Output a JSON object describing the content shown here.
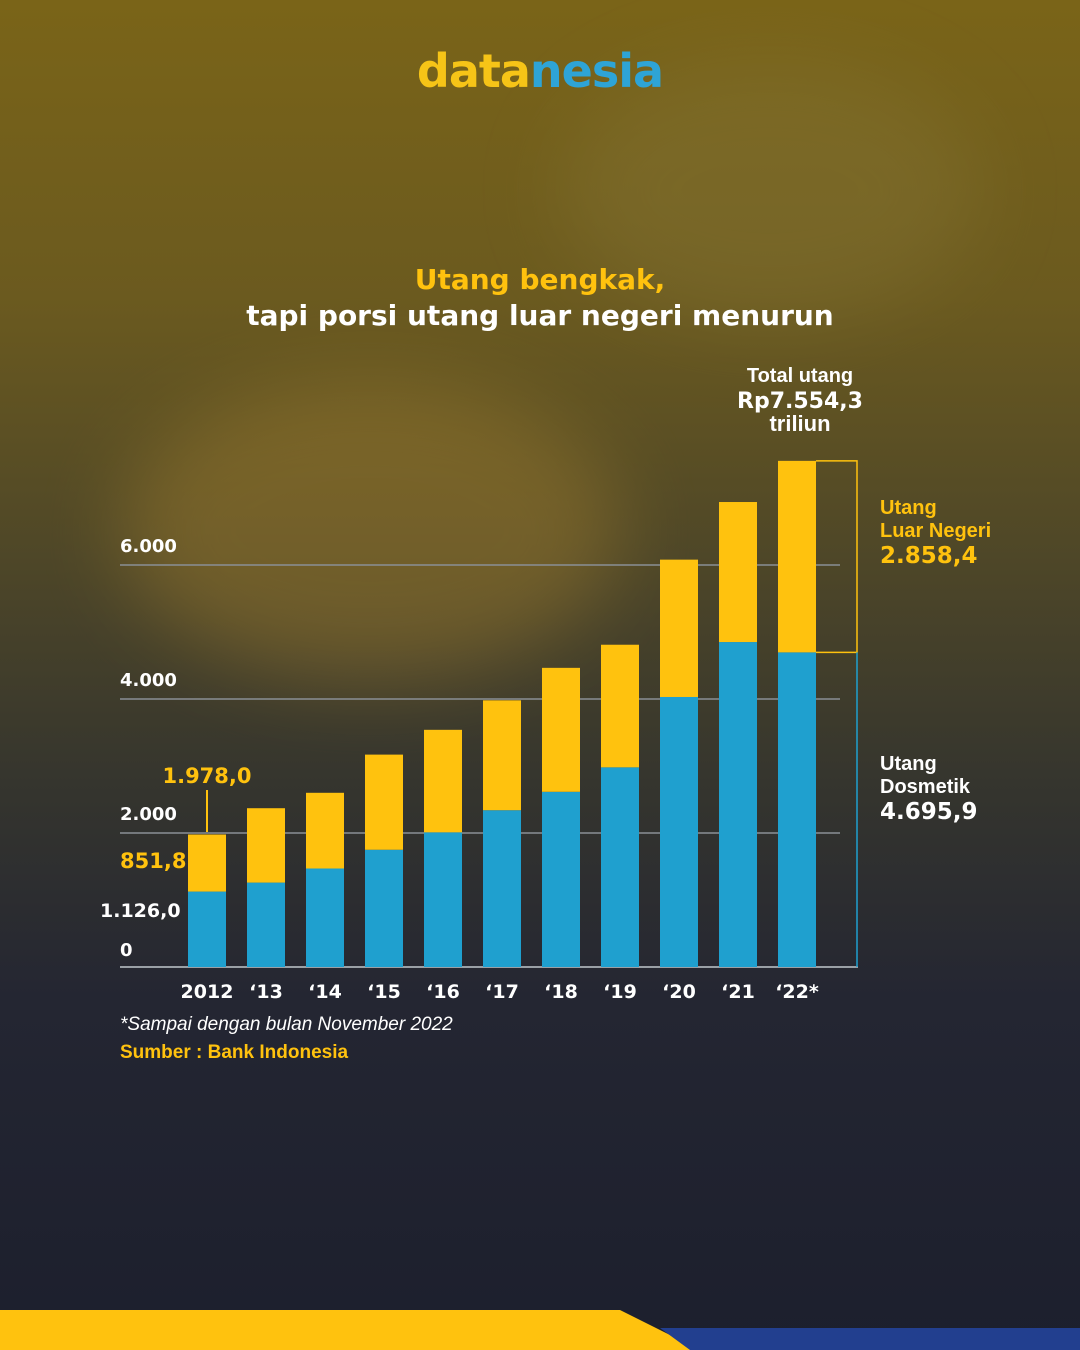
{
  "brand": {
    "part1": "data",
    "part2": "nesia"
  },
  "title": {
    "line1": "Utang bengkak,",
    "line2": "tapi porsi utang luar negeri menurun"
  },
  "annotations": {
    "total_label": "Total utang",
    "total_value": "Rp7.554,3",
    "total_unit": "triliun",
    "external_label1": "Utang",
    "external_label2": "Luar Negeri",
    "external_value": "2.858,4",
    "domestic_label1": "Utang",
    "domestic_label2": "Dosmetik",
    "domestic_value": "4.695,9",
    "first_total": "1.978,0",
    "first_external": "851,8",
    "first_domestic": "1.126,0"
  },
  "footnote": "*Sampai dengan bulan November 2022",
  "source": "Sumber : Bank Indonesia",
  "colors": {
    "domestic": "#1fa0cf",
    "external": "#ffc20e",
    "text": "#ffffff",
    "accent": "#ffc20e"
  },
  "chart_data": {
    "type": "bar",
    "stacked": true,
    "title": "",
    "xlabel": "",
    "ylabel": "",
    "categories": [
      "2012",
      "‘13",
      "‘14",
      "‘15",
      "‘16",
      "‘17",
      "‘18",
      "‘19",
      "‘20",
      "‘21",
      "‘22*"
    ],
    "series": [
      {
        "name": "Utang Dosmetik",
        "values": [
          1126.0,
          1260,
          1470,
          1750,
          2010,
          2340,
          2615,
          2980,
          4030,
          4850,
          4695.9
        ]
      },
      {
        "name": "Utang Luar Negeri",
        "values": [
          851.8,
          1110,
          1130,
          1420,
          1530,
          1640,
          1850,
          1830,
          2050,
          2090,
          2858.4
        ]
      }
    ],
    "yticks": [
      0,
      2000,
      4000,
      6000
    ],
    "ytick_labels": [
      "0",
      "2.000",
      "4.000",
      "6.000"
    ],
    "ylim": [
      0,
      7700
    ],
    "grid": true
  }
}
